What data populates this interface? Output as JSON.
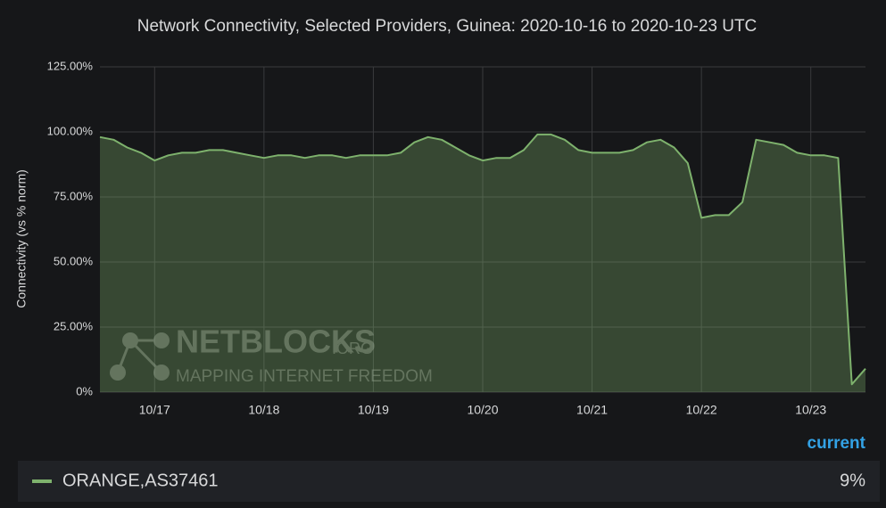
{
  "chart_data": {
    "type": "area",
    "title": "Network Connectivity, Selected Providers, Guinea: 2020-10-16 to 2020-10-23 UTC",
    "y_label": "Connectivity (vs % norm)",
    "categories": [
      null,
      null,
      null,
      null,
      "10/17",
      null,
      null,
      null,
      null,
      null,
      null,
      null,
      "10/18",
      null,
      null,
      null,
      null,
      null,
      null,
      null,
      "10/19",
      null,
      null,
      null,
      null,
      null,
      null,
      null,
      "10/20",
      null,
      null,
      null,
      null,
      null,
      null,
      null,
      "10/21",
      null,
      null,
      null,
      null,
      null,
      null,
      null,
      "10/22",
      null,
      null,
      null,
      null,
      null,
      null,
      null,
      "10/23",
      null,
      null,
      null,
      null
    ],
    "series": [
      {
        "name": "ORANGE,AS37461",
        "color": "#7eb26d",
        "values": [
          98,
          97,
          94,
          92,
          89,
          91,
          92,
          92,
          93,
          93,
          92,
          91,
          90,
          91,
          91,
          90,
          91,
          91,
          90,
          91,
          91,
          91,
          92,
          96,
          98,
          97,
          94,
          91,
          89,
          90,
          90,
          93,
          99,
          99,
          97,
          93,
          92,
          92,
          92,
          93,
          96,
          97,
          94,
          88,
          67,
          68,
          68,
          73,
          97,
          96,
          95,
          92,
          91,
          91,
          90,
          3,
          9
        ]
      }
    ],
    "ylim": [
      0,
      125
    ],
    "yticks": [
      {
        "value": 0,
        "label": "0%"
      },
      {
        "value": 25,
        "label": "25.00%"
      },
      {
        "value": 50,
        "label": "50.00%"
      },
      {
        "value": 75,
        "label": "75.00%"
      },
      {
        "value": 100,
        "label": "100.00%"
      },
      {
        "value": 125,
        "label": "125.00%"
      }
    ],
    "grid": true,
    "legend": {
      "header": "current",
      "values": [
        9
      ],
      "value_labels": [
        "9%"
      ]
    },
    "watermark": {
      "brand": "NETBLOCKS",
      "suffix": ".ORG",
      "tagline": "MAPPING INTERNET FREEDOM"
    }
  }
}
